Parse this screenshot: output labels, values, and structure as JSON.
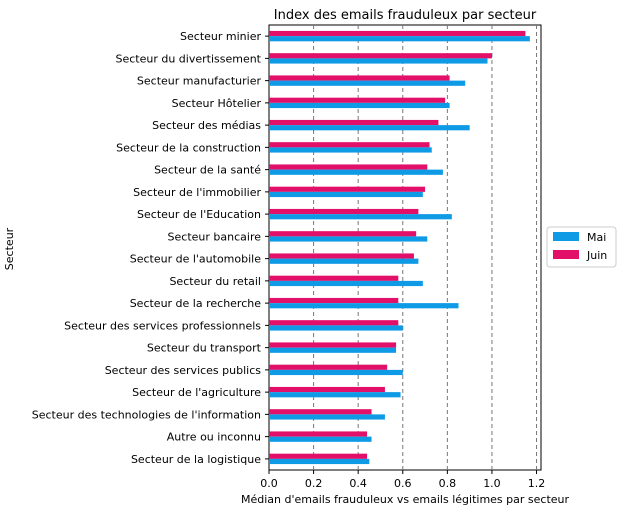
{
  "chart_data": {
    "type": "bar",
    "orientation": "horizontal",
    "title": "Index des emails frauduleux par secteur",
    "xlabel": "Médian d'emails frauduleux vs emails légitimes par secteur",
    "ylabel": "Secteur",
    "xlim": [
      0,
      1.22
    ],
    "xticks": [
      "0.0",
      "0.2",
      "0.4",
      "0.6",
      "0.8",
      "1.0",
      "1.2"
    ],
    "grid": "vertical dashed",
    "legend_position": "right",
    "categories": [
      "Secteur minier",
      "Secteur du divertissement",
      "Secteur manufacturier",
      "Secteur Hôtelier",
      "Secteur des médias",
      "Secteur de la construction",
      "Secteur de la santé",
      "Secteur de l'immobilier",
      "Secteur de l'Education",
      "Secteur bancaire",
      "Secteur de l'automobile",
      "Secteur du retail",
      "Secteur de la recherche",
      "Secteur des services professionnels",
      "Secteur du transport",
      "Secteur des services publics",
      "Secteur de l'agriculture",
      "Secteur des technologies de l'information",
      "Autre ou inconnu",
      "Secteur de la logistique"
    ],
    "series": [
      {
        "name": "Mai",
        "color": "#0f9ae6",
        "values": [
          1.17,
          0.98,
          0.88,
          0.81,
          0.9,
          0.73,
          0.78,
          0.69,
          0.82,
          0.71,
          0.67,
          0.69,
          0.85,
          0.6,
          0.57,
          0.6,
          0.59,
          0.52,
          0.46,
          0.45
        ]
      },
      {
        "name": "Juin",
        "color": "#e3106a",
        "values": [
          1.15,
          1.0,
          0.81,
          0.79,
          0.76,
          0.72,
          0.71,
          0.7,
          0.67,
          0.66,
          0.65,
          0.58,
          0.58,
          0.58,
          0.57,
          0.53,
          0.52,
          0.46,
          0.44,
          0.44
        ]
      }
    ]
  }
}
